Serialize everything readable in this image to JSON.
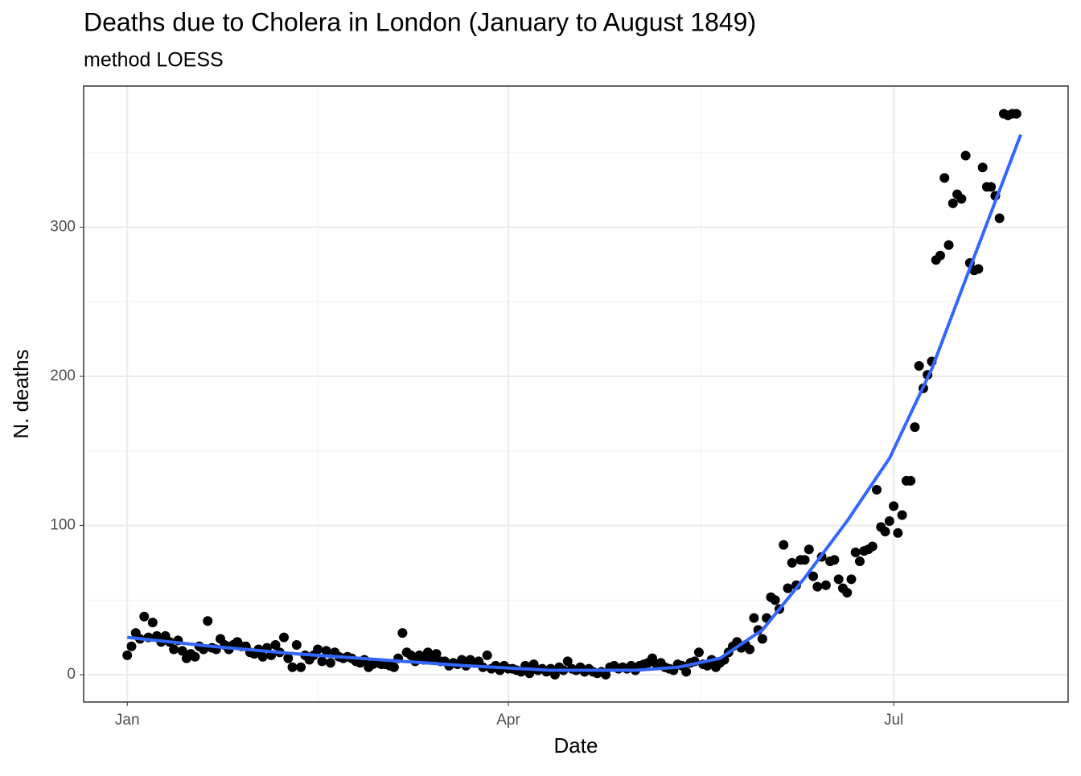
{
  "chart_data": {
    "type": "scatter",
    "title": "Deaths due to Cholera in London (January to August 1849)",
    "subtitle": "method LOESS",
    "x_label": "Date",
    "y_label": "N. deaths",
    "x": [
      0,
      1,
      2,
      3,
      4,
      5,
      6,
      7,
      8,
      9,
      10,
      11,
      12,
      13,
      14,
      15,
      16,
      17,
      18,
      19,
      20,
      21,
      22,
      23,
      24,
      25,
      26,
      27,
      28,
      29,
      30,
      31,
      32,
      33,
      34,
      35,
      36,
      37,
      38,
      39,
      40,
      41,
      42,
      43,
      44,
      45,
      46,
      47,
      48,
      49,
      50,
      51,
      52,
      53,
      54,
      55,
      56,
      57,
      58,
      59,
      60,
      61,
      62,
      63,
      64,
      65,
      66,
      67,
      68,
      69,
      70,
      71,
      72,
      73,
      74,
      75,
      76,
      77,
      78,
      79,
      80,
      81,
      82,
      83,
      84,
      85,
      86,
      87,
      88,
      89,
      90,
      91,
      92,
      93,
      94,
      95,
      96,
      97,
      98,
      99,
      100,
      101,
      102,
      103,
      104,
      105,
      106,
      107,
      108,
      109,
      110,
      111,
      112,
      113,
      114,
      115,
      116,
      117,
      118,
      119,
      120,
      121,
      122,
      123,
      124,
      125,
      126,
      127,
      128,
      129,
      130,
      131,
      132,
      133,
      134,
      135,
      136,
      137,
      138,
      139,
      140,
      141,
      142,
      143,
      144,
      145,
      146,
      147,
      148,
      149,
      150,
      151,
      152,
      153,
      154,
      155,
      156,
      157,
      158,
      159,
      160,
      161,
      162,
      163,
      164,
      165,
      166,
      167,
      168,
      169,
      170,
      171,
      172,
      173,
      174,
      175,
      176,
      177,
      178,
      179,
      180,
      181,
      182,
      183,
      184,
      185,
      186,
      187,
      188,
      189,
      190,
      191,
      192,
      193,
      194,
      195,
      196,
      197,
      198,
      199,
      200,
      201,
      202,
      203,
      204,
      205,
      206,
      207,
      208,
      209,
      210
    ],
    "series": [
      {
        "name": "Deaths",
        "color": "#000000",
        "values": [
          13,
          19,
          28,
          24,
          39,
          25,
          35,
          26,
          22,
          26,
          22,
          17,
          23,
          16,
          11,
          14,
          12,
          19,
          17,
          36,
          18,
          17,
          24,
          20,
          17,
          20,
          22,
          19,
          19,
          15,
          14,
          17,
          12,
          18,
          13,
          20,
          15,
          25,
          11,
          5,
          20,
          5,
          13,
          10,
          13,
          17,
          9,
          16,
          8,
          15,
          12,
          11,
          12,
          11,
          9,
          8,
          10,
          5,
          7,
          8,
          7,
          7,
          6,
          5,
          11,
          28,
          15,
          13,
          9,
          13,
          10,
          15,
          11,
          14,
          9,
          9,
          6,
          8,
          7,
          10,
          6,
          10,
          8,
          9,
          5,
          13,
          4,
          6,
          3,
          6,
          4,
          4,
          3,
          2,
          6,
          1,
          7,
          3,
          4,
          2,
          4,
          0,
          5,
          3,
          9,
          4,
          3,
          5,
          2,
          4,
          2,
          1,
          2,
          0,
          5,
          6,
          4,
          5,
          4,
          6,
          3,
          6,
          7,
          8,
          11,
          7,
          8,
          5,
          4,
          3,
          7,
          6,
          2,
          8,
          9,
          15,
          7,
          6,
          10,
          5,
          8,
          10,
          15,
          19,
          22,
          18,
          20,
          17,
          38,
          30,
          24,
          38,
          52,
          50,
          44,
          87,
          58,
          75,
          60,
          77,
          77,
          84,
          66,
          59,
          79,
          60,
          76,
          77,
          64,
          58,
          55,
          64,
          82,
          76,
          83,
          84,
          86,
          124,
          99,
          96,
          103,
          113,
          95,
          107,
          130,
          130,
          166,
          207,
          192,
          201,
          210,
          278,
          281,
          333,
          288,
          316,
          322,
          319,
          348,
          276,
          271,
          272,
          340,
          327,
          327,
          321,
          306,
          376,
          375,
          376,
          376
        ]
      },
      {
        "name": "LOESS",
        "color": "#3366ff",
        "type": "line",
        "x": [
          0,
          20,
          40,
          60,
          80,
          100,
          120,
          130,
          140,
          150,
          160,
          170,
          180,
          190,
          200,
          211
        ],
        "values": [
          25,
          19,
          14,
          10,
          6,
          3,
          3,
          5,
          11,
          30,
          65,
          103,
          145,
          205,
          280,
          362
        ]
      }
    ],
    "xlim": [
      -10.3,
      222.2
    ],
    "xticks": [
      {
        "value": 0,
        "label": "Jan"
      },
      {
        "value": 90,
        "label": "Apr"
      },
      {
        "value": 181,
        "label": "Jul"
      }
    ],
    "ylim": [
      -18.3,
      394.6
    ],
    "yticks": [
      0,
      100,
      200,
      300
    ],
    "grid": true
  }
}
